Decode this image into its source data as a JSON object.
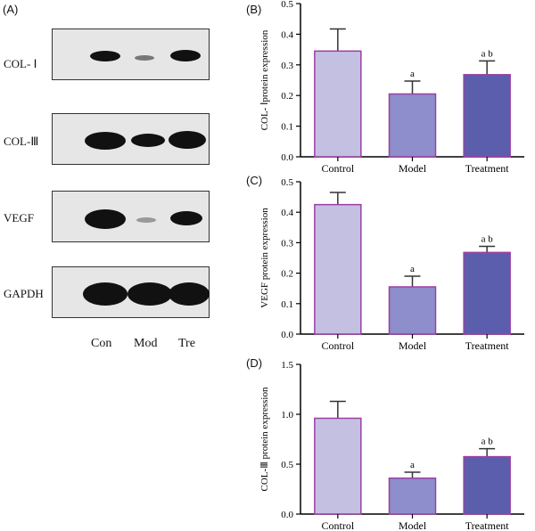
{
  "panels": {
    "a": "(A)",
    "b": "(B)",
    "c": "(C)",
    "d": "(D)"
  },
  "blot": {
    "rows": [
      "COL- Ⅰ",
      "COL-Ⅲ",
      "VEGF",
      "GAPDH"
    ],
    "lanes": [
      "Con",
      "Mod",
      "Tre"
    ]
  },
  "colors": {
    "control": "#c4c0e2",
    "model": "#8d8ecb",
    "treatment": "#5a5eac",
    "bar_edge": "#9c3fa4"
  },
  "chart_data": [
    {
      "type": "bar",
      "panel": "(B)",
      "title": "",
      "categories": [
        "Control",
        "Model",
        "Treatment"
      ],
      "values": [
        0.345,
        0.205,
        0.268
      ],
      "errors": [
        0.072,
        0.042,
        0.045
      ],
      "annotations": [
        "",
        "a",
        "a b"
      ],
      "xlabel": "",
      "ylabel": "COL- Ⅰprotein expression",
      "ylim": [
        0,
        0.5
      ],
      "yticks": [
        "0.0",
        "0.1",
        "0.2",
        "0.3",
        "0.4",
        "0.5"
      ]
    },
    {
      "type": "bar",
      "panel": "(C)",
      "title": "",
      "categories": [
        "Control",
        "Model",
        "Treatment"
      ],
      "values": [
        0.425,
        0.155,
        0.268
      ],
      "errors": [
        0.04,
        0.035,
        0.02
      ],
      "annotations": [
        "",
        "a",
        "a b"
      ],
      "xlabel": "",
      "ylabel": "VEGF protein expression",
      "ylim": [
        0,
        0.5
      ],
      "yticks": [
        "0.0",
        "0.1",
        "0.2",
        "0.3",
        "0.4",
        "0.5"
      ]
    },
    {
      "type": "bar",
      "panel": "(D)",
      "title": "",
      "categories": [
        "Control",
        "Model",
        "Treatment"
      ],
      "values": [
        0.96,
        0.36,
        0.575
      ],
      "errors": [
        0.17,
        0.06,
        0.08
      ],
      "annotations": [
        "",
        "a",
        "a b"
      ],
      "xlabel": "",
      "ylabel": "COL-Ⅲ protein expression",
      "ylim": [
        0,
        1.5
      ],
      "yticks": [
        "0.0",
        "0.5",
        "1.0",
        "1.5"
      ]
    }
  ]
}
